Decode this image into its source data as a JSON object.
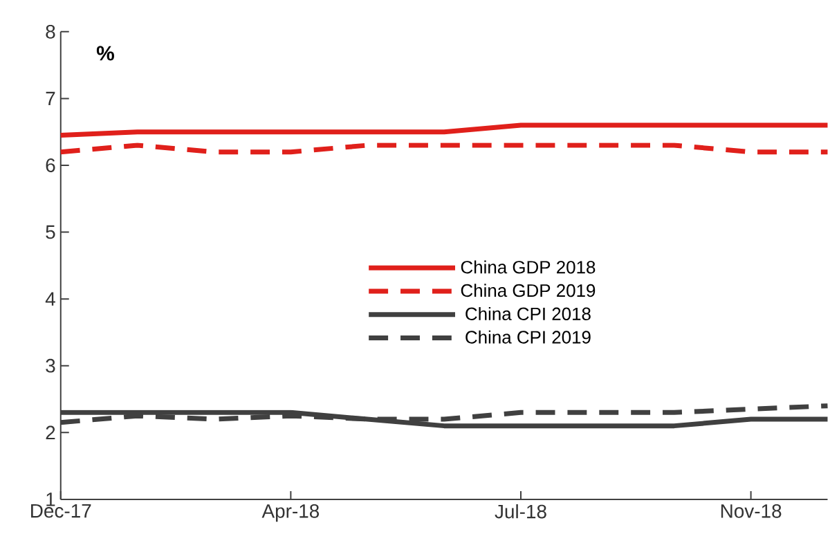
{
  "chart_data": {
    "type": "line",
    "ylabel": "%",
    "ylim": [
      1,
      8
    ],
    "yticks": [
      1,
      2,
      3,
      4,
      5,
      6,
      7,
      8
    ],
    "categories": [
      "Dec-17",
      null,
      null,
      "Apr-18",
      null,
      null,
      "Jul-18",
      null,
      null,
      "Nov-18",
      null
    ],
    "legend": "center",
    "grid": false,
    "series": [
      {
        "name": "China GDP 2018",
        "color": "#e0201b",
        "line_style": "solid",
        "values": [
          6.45,
          6.5,
          6.5,
          6.5,
          6.5,
          6.5,
          6.6,
          6.6,
          6.6,
          6.6,
          6.6
        ]
      },
      {
        "name": "China GDP 2019",
        "color": "#e0201b",
        "line_style": "dashed",
        "values": [
          6.2,
          6.3,
          6.2,
          6.2,
          6.3,
          6.3,
          6.3,
          6.3,
          6.3,
          6.2,
          6.2
        ]
      },
      {
        "name": "China CPI 2018",
        "color": "#404040",
        "line_style": "solid",
        "values": [
          2.3,
          2.3,
          2.3,
          2.3,
          2.2,
          2.1,
          2.1,
          2.1,
          2.1,
          2.2,
          2.2
        ]
      },
      {
        "name": "China CPI 2019",
        "color": "#404040",
        "line_style": "dashed",
        "values": [
          2.15,
          2.25,
          2.2,
          2.25,
          2.2,
          2.2,
          2.3,
          2.3,
          2.3,
          2.35,
          2.4
        ]
      }
    ]
  }
}
